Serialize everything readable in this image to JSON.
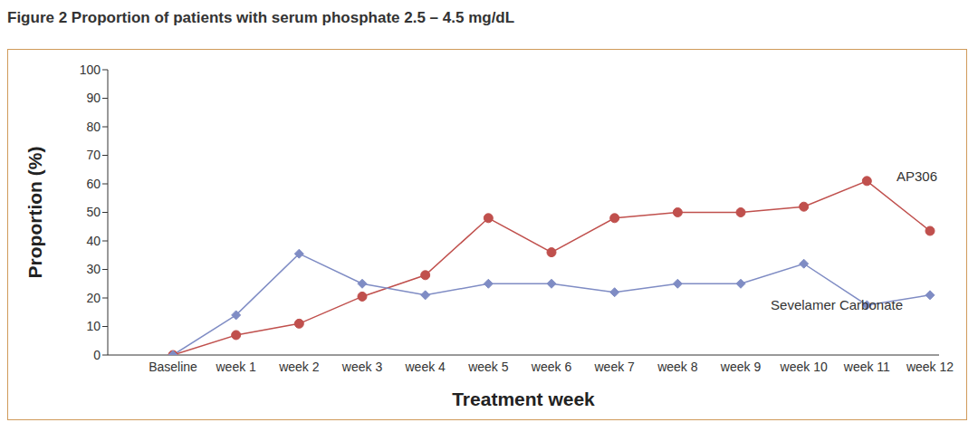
{
  "chart_data": {
    "type": "line",
    "title": "Figure 2 Proportion of patients with serum phosphate 2.5 – 4.5 mg/dL",
    "x_label": "Treatment week",
    "y_label": "Proportion (%)",
    "categories": [
      "Baseline",
      "week 1",
      "week 2",
      "week 3",
      "week 4",
      "week 5",
      "week 6",
      "week 7",
      "week 8",
      "week 9",
      "week 10",
      "week 11",
      "week 12"
    ],
    "series": [
      {
        "name": "AP306",
        "color": "#c0504d",
        "marker": "circle",
        "values": [
          0,
          7,
          11,
          20.5,
          28,
          48,
          36,
          48,
          50,
          50,
          52,
          61,
          43.5
        ]
      },
      {
        "name": "Sevelamer Carbonate",
        "color": "#7f8cc4",
        "marker": "diamond",
        "values": [
          0,
          14,
          35.5,
          25,
          21,
          25,
          25,
          22,
          25,
          25,
          32,
          17.5,
          21
        ]
      }
    ],
    "ylim": [
      0,
      100
    ],
    "yticks": [
      0,
      10,
      20,
      30,
      40,
      50,
      60,
      70,
      80,
      90,
      100
    ],
    "grid": false
  }
}
